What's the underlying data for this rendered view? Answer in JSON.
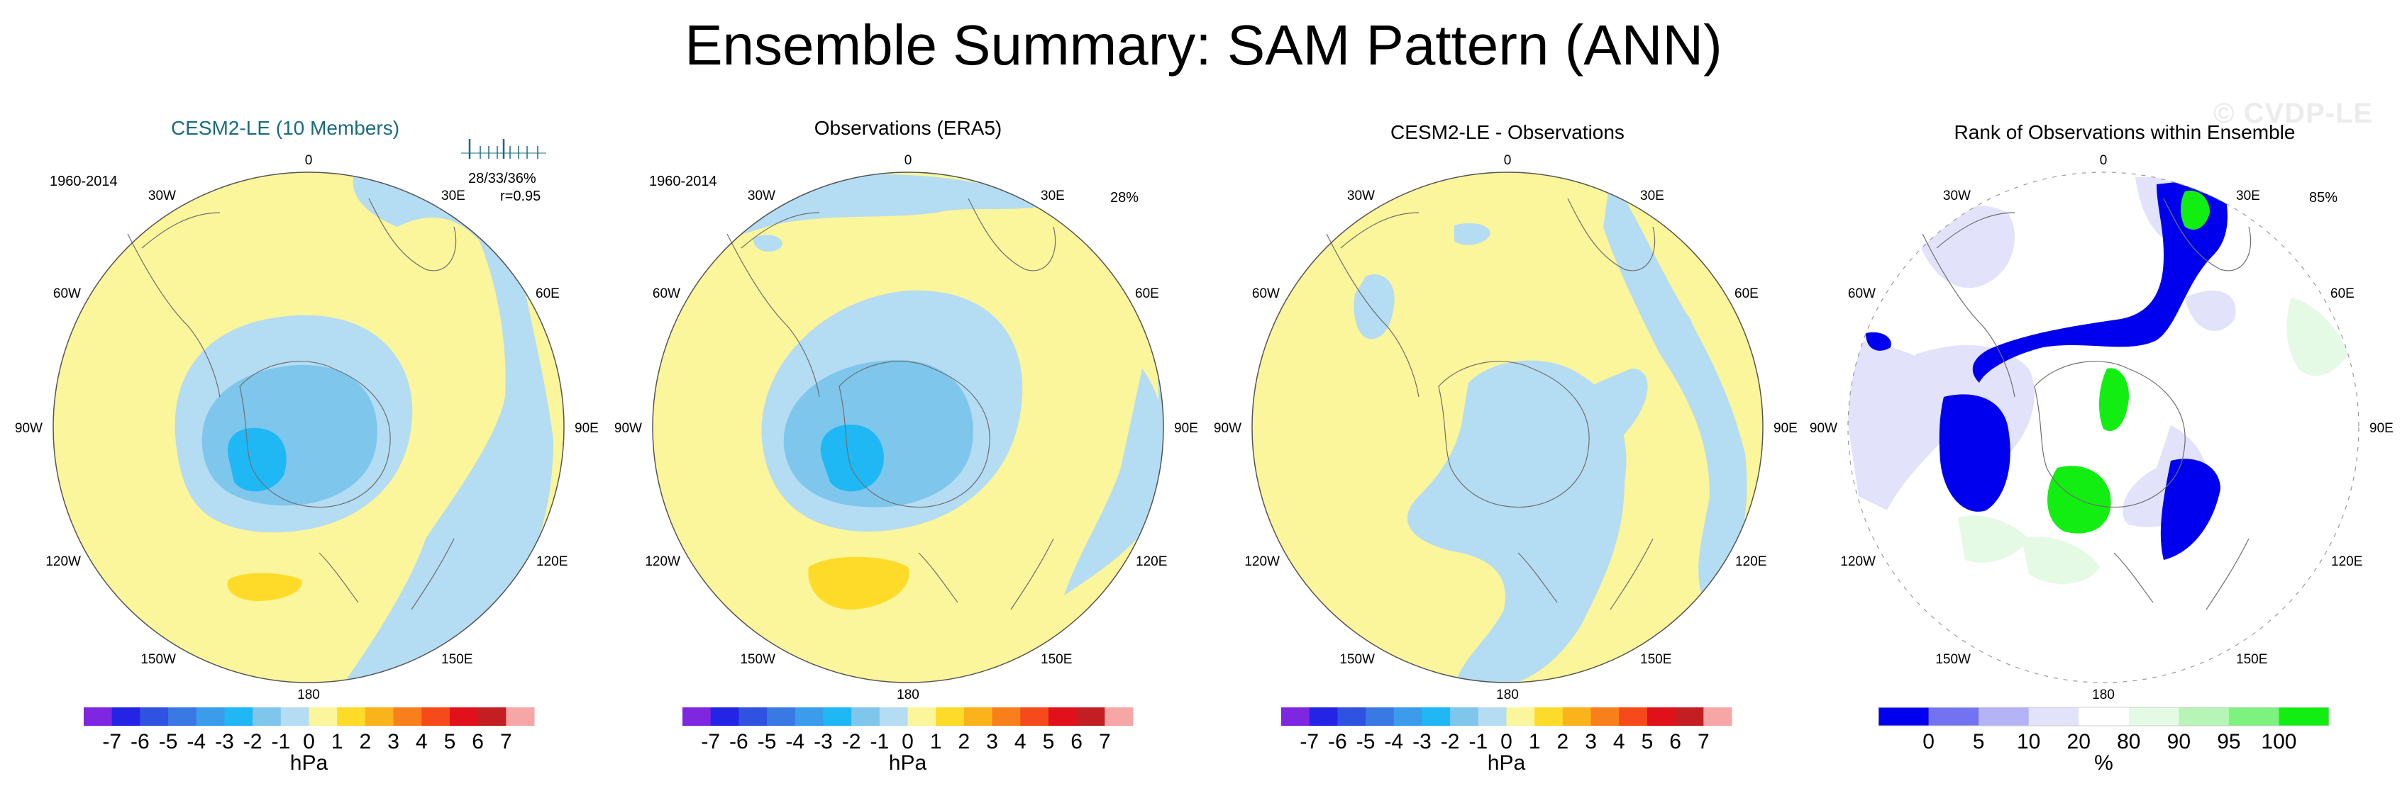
{
  "title": "Ensemble Summary: SAM Pattern (ANN)",
  "watermark": "© CVDP-LE",
  "colors": {
    "sequential": [
      "#7f26e0",
      "#2424e6",
      "#2f52e0",
      "#3a78e4",
      "#3a9cea",
      "#1fb8f4",
      "#7ec6ec",
      "#b4dcf2",
      "#fbf59b",
      "#fddb28",
      "#fbb31c",
      "#f8801c",
      "#f64a1a",
      "#e0111a",
      "#c31f22",
      "#f7a6a6"
    ],
    "rank": [
      "#0000ee",
      "#7373f2",
      "#b3b3f5",
      "#e2e2fa",
      "#ffffff",
      "#e4fae4",
      "#b6f5b6",
      "#7ef27e",
      "#12ee12"
    ],
    "map_blue": "#0000ee",
    "map_green": "#12ee12",
    "map_lavender": "#e2e2fa",
    "map_palegreen": "#e4fae4",
    "map_yellow": "#fbf59b",
    "map_lightblue": "#b4dcf2",
    "map_midblue": "#7ec6ec",
    "map_cyan": "#1fb8f4",
    "map_orange": "#fddb28",
    "title_teal": "#1a6b80"
  },
  "panels": [
    {
      "title": "CESM2-LE (10 Members)",
      "period": "1960-2014",
      "stats_line1": "28/33/36%",
      "stats_line2": "r=0.95",
      "lon_labels": {
        "lon0": "0",
        "lon30e": "30E",
        "lon60e": "60E",
        "lon90e": "90E",
        "lon120e": "120E",
        "lon150e": "150E",
        "lon180": "180",
        "lon150w": "150W",
        "lon120w": "120W",
        "lon90w": "90W",
        "lon60w": "60W",
        "lon30w": "30W"
      }
    },
    {
      "title": "Observations (ERA5)",
      "period": "1960-2014",
      "percent": "28%",
      "lon_labels": {
        "lon0": "0",
        "lon30e": "30E",
        "lon60e": "60E",
        "lon90e": "90E",
        "lon120e": "120E",
        "lon150e": "150E",
        "lon180": "180",
        "lon150w": "150W",
        "lon120w": "120W",
        "lon90w": "90W",
        "lon60w": "60W",
        "lon30w": "30W"
      }
    },
    {
      "title": "CESM2-LE - Observations",
      "lon_labels": {
        "lon0": "0",
        "lon30e": "30E",
        "lon60e": "60E",
        "lon90e": "90E",
        "lon120e": "120E",
        "lon150e": "150E",
        "lon180": "180",
        "lon150w": "150W",
        "lon120w": "120W",
        "lon90w": "90W",
        "lon60w": "60W",
        "lon30w": "30W"
      }
    },
    {
      "title": "Rank of Observations within Ensemble",
      "percent": "85%",
      "lon_labels": {
        "lon0": "0",
        "lon30e": "30E",
        "lon60e": "60E",
        "lon90e": "90E",
        "lon120e": "120E",
        "lon150e": "150E",
        "lon180": "180",
        "lon150w": "150W",
        "lon120w": "120W",
        "lon90w": "90W",
        "lon60w": "60W",
        "lon30w": "30W"
      }
    }
  ],
  "chart_data": {
    "type": "heatmap",
    "projection": "south polar stereographic",
    "colorbars": [
      {
        "ticks": [
          "-7",
          "-6",
          "-5",
          "-4",
          "-3",
          "-2",
          "-1",
          "0",
          "1",
          "2",
          "3",
          "4",
          "5",
          "6",
          "7"
        ],
        "unit": "hPa"
      },
      {
        "ticks": [
          "-7",
          "-6",
          "-5",
          "-4",
          "-3",
          "-2",
          "-1",
          "0",
          "1",
          "2",
          "3",
          "4",
          "5",
          "6",
          "7"
        ],
        "unit": "hPa"
      },
      {
        "ticks": [
          "-7",
          "-6",
          "-5",
          "-4",
          "-3",
          "-2",
          "-1",
          "0",
          "1",
          "2",
          "3",
          "4",
          "5",
          "6",
          "7"
        ],
        "unit": "hPa"
      },
      {
        "ticks": [
          "0",
          "5",
          "10",
          "20",
          "80",
          "90",
          "95",
          "100"
        ],
        "unit": "%"
      }
    ],
    "ensemble_tick_marks": [
      -0.8,
      -0.55,
      -0.35,
      -0.15,
      0.0,
      0.15,
      0.35,
      0.55,
      0.8
    ]
  }
}
